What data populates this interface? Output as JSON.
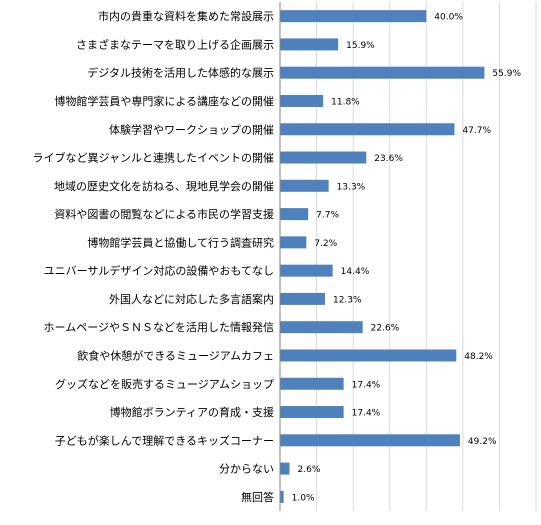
{
  "chart_data": {
    "type": "bar",
    "orientation": "horizontal",
    "categories": [
      "市内の貴重な資料を集めた常設展示",
      "さまざまなテーマを取り上げる企画展示",
      "デジタル技術を活用した体感的な展示",
      "博物館学芸員や専門家による講座などの開催",
      "体験学習やワークショップの開催",
      "ライブなど異ジャンルと連携したイベントの開催",
      "地域の歴史文化を訪ねる、現地見学会の開催",
      "資料や図書の閲覧などによる市民の学習支援",
      "博物館学芸員と協働して行う調査研究",
      "ユニバーサルデザイン対応の設備やおもてなし",
      "外国人などに対応した多言語案内",
      "ホームページやＳＮＳなどを活用した情報発信",
      "飲食や休憩ができるミュージアムカフェ",
      "グッズなどを販売するミュージアムショップ",
      "博物館ボランティアの育成・支援",
      "子どもが楽しんで理解できるキッズコーナー",
      "分からない",
      "無回答"
    ],
    "values": [
      40.0,
      15.9,
      55.9,
      11.8,
      47.7,
      23.6,
      13.3,
      7.7,
      7.2,
      14.4,
      12.3,
      22.6,
      48.2,
      17.4,
      17.4,
      49.2,
      2.6,
      1.0
    ],
    "data_labels": [
      "40.0%",
      "15.9%",
      "55.9%",
      "11.8%",
      "47.7%",
      "23.6%",
      "13.3%",
      "7.7%",
      "7.2%",
      "14.4%",
      "12.3%",
      "22.6%",
      "48.2%",
      "17.4%",
      "17.4%",
      "49.2%",
      "2.6%",
      "1.0%"
    ],
    "xlim": [
      0,
      70
    ],
    "grid": true,
    "bar_color": "#4f81bd",
    "grid_color": "#d9d9d9",
    "axis_color": "#868686",
    "text_color": "#000000"
  }
}
